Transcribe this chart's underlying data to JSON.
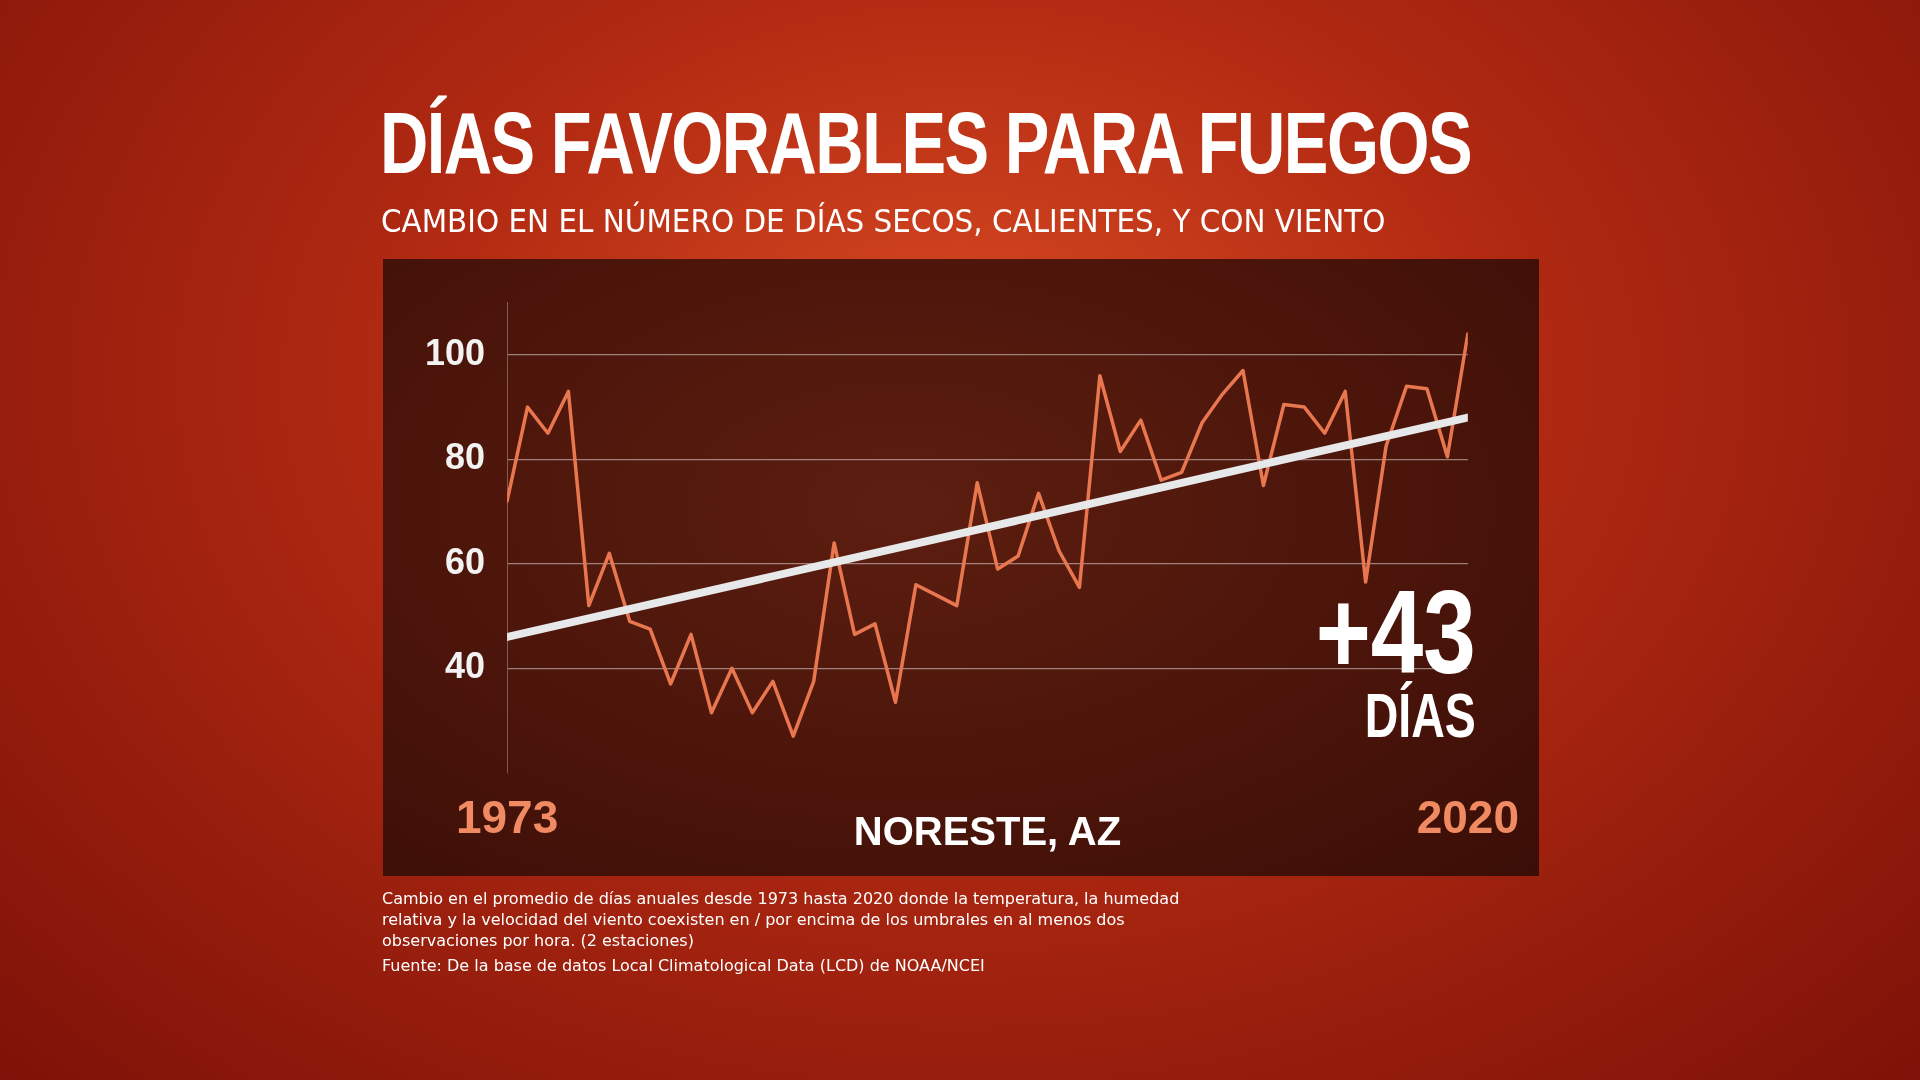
{
  "chart_data": {
    "type": "line",
    "title": "DÍAS FAVORABLES PARA FUEGOS",
    "subtitle": "CAMBIO EN EL NÚMERO DE DÍAS SECOS, CALIENTES, Y CON VIENTO",
    "xlabel": "NORESTE, AZ",
    "x": [
      1973,
      1974,
      1975,
      1976,
      1977,
      1978,
      1979,
      1980,
      1981,
      1982,
      1983,
      1984,
      1985,
      1986,
      1987,
      1988,
      1989,
      1990,
      1991,
      1992,
      1993,
      1994,
      1995,
      1996,
      1997,
      1998,
      1999,
      2000,
      2001,
      2002,
      2003,
      2004,
      2005,
      2006,
      2007,
      2008,
      2009,
      2010,
      2011,
      2012,
      2013,
      2014,
      2015,
      2016,
      2017,
      2018,
      2019,
      2020
    ],
    "series": [
      {
        "color": "#e8774f",
        "values": [
          72,
          90,
          85,
          93,
          52,
          62,
          49,
          47.5,
          37,
          46.5,
          31.5,
          40,
          31.5,
          37.5,
          27,
          37.5,
          64,
          46.5,
          48.5,
          33.5,
          56,
          54,
          52,
          75.5,
          59,
          61.5,
          73.5,
          62.5,
          55.5,
          96,
          81.5,
          87.5,
          76,
          77.5,
          87,
          92.5,
          97,
          75,
          90.5,
          90,
          85,
          93,
          56.5,
          82.5,
          94,
          93.5,
          80.5,
          104
        ]
      },
      {
        "type": "line",
        "color": "#e6e8ea",
        "x": [
          1973,
          2020
        ],
        "values": [
          46,
          88
        ]
      }
    ],
    "xlim": [
      1973,
      2020
    ],
    "xticks": [
      1973,
      2020
    ],
    "ylim": [
      20,
      110
    ],
    "yticks": [
      40,
      60,
      80,
      100
    ],
    "grid": "y",
    "legend": false,
    "marker": "none",
    "line_style": "solid",
    "annotations": [
      "+43",
      "DÍAS",
      "Cambio en el promedio de días anuales desde 1973 hasta 2020 donde la temperatura, la humedad relativa y la velocidad del viento coexisten en / por encima de los umbrales en al menos dos observaciones por hora. (2 estaciones)",
      "Fuente: De la base de datos Local Climatological Data (LCD) de NOAA/NCEI"
    ]
  }
}
